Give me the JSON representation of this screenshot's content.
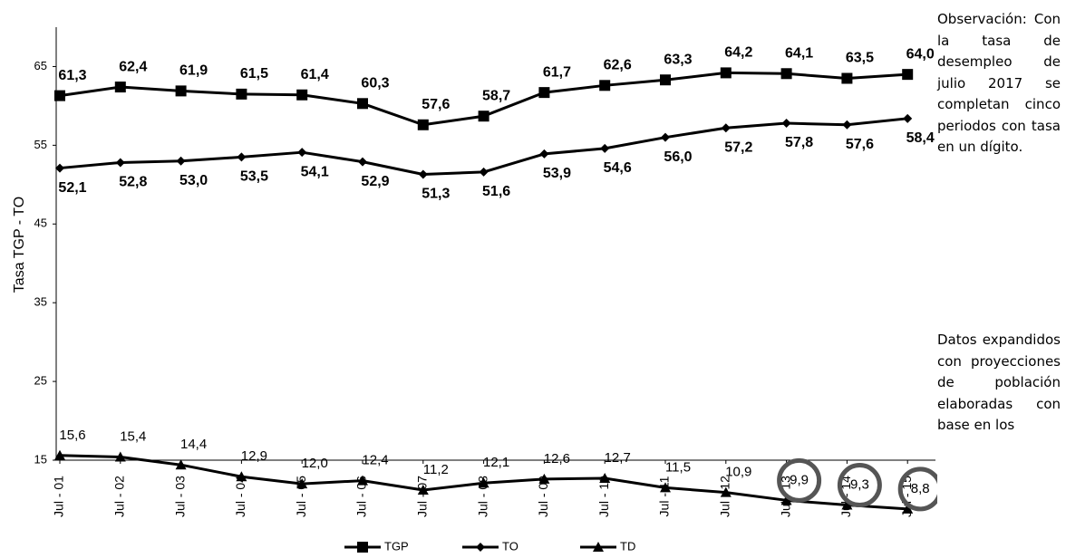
{
  "chart_data": {
    "type": "line",
    "y_label": "Tasa TGP - TO",
    "categories": [
      "Jul - 01",
      "Jul - 02",
      "Jul - 03",
      "Jul - 04",
      "Jul - 05",
      "Jul - 06",
      "Jul - 07",
      "Jul - 08",
      "Jul - 09",
      "Jul - 10",
      "Jul - 11",
      "Jul - 12",
      "Jul - 13",
      "Jul - 14",
      "Jul - 15"
    ],
    "series": [
      {
        "name": "TGP",
        "color": "#000000",
        "marker": "square",
        "values": [
          61.3,
          62.4,
          61.9,
          61.5,
          61.4,
          60.3,
          57.6,
          58.7,
          61.7,
          62.6,
          63.3,
          64.2,
          64.1,
          63.5,
          64.0
        ],
        "value_labels": [
          "61,3",
          "62,4",
          "61,9",
          "61,5",
          "61,4",
          "60,3",
          "57,6",
          "58,7",
          "61,7",
          "62,6",
          "63,3",
          "64,2",
          "64,1",
          "63,5",
          "64,0"
        ]
      },
      {
        "name": "TO",
        "color": "#000000",
        "marker": "diamond",
        "values": [
          52.1,
          52.8,
          53.0,
          53.5,
          54.1,
          52.9,
          51.3,
          51.6,
          53.9,
          54.6,
          56.0,
          57.2,
          57.8,
          57.6,
          58.4
        ],
        "value_labels": [
          "52,1",
          "52,8",
          "53,0",
          "53,5",
          "54,1",
          "52,9",
          "51,3",
          "51,6",
          "53,9",
          "54,6",
          "56,0",
          "57,2",
          "57,8",
          "57,6",
          "58,4"
        ]
      },
      {
        "name": "TD",
        "color": "#000000",
        "marker": "triangle",
        "values": [
          15.6,
          15.4,
          14.4,
          12.9,
          12.0,
          12.4,
          11.2,
          12.1,
          12.6,
          12.7,
          11.5,
          10.9,
          9.9,
          9.3,
          8.8
        ],
        "value_labels": [
          "15,6",
          "15,4",
          "14,4",
          "12,9",
          "12,0",
          "12,4",
          "11,2",
          "12,1",
          "12,6",
          "12,7",
          "11,5",
          "10,9",
          "9,9",
          "9,3",
          "8,8"
        ]
      }
    ],
    "ylim": [
      15,
      70
    ],
    "yticks": [
      15,
      25,
      35,
      45,
      55,
      65
    ],
    "annotations": [
      "Observación: Con la tasa de desempleo de julio 2017 se completan cinco periodos con tasa en un dígito.",
      "Datos expandidos con proyecciones de población elaboradas con base en los"
    ]
  }
}
